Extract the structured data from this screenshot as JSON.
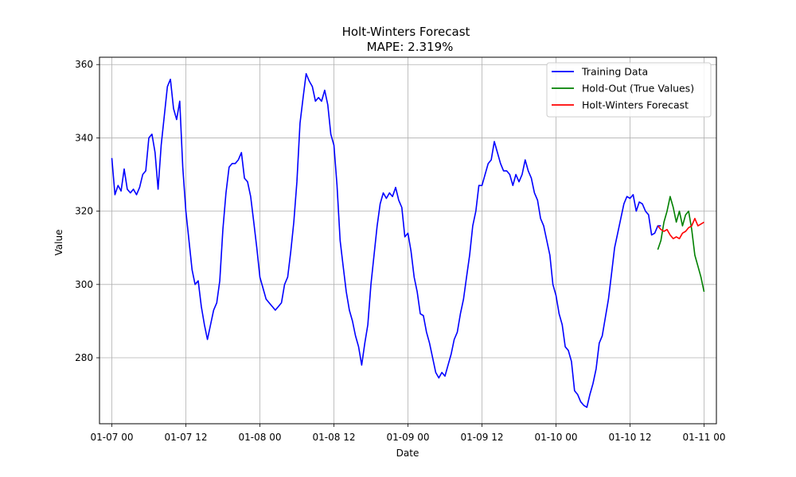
{
  "chart_data": {
    "type": "line",
    "title": "Holt-Winters Forecast",
    "subtitle": "MAPE: 2.319%",
    "xlabel": "Date",
    "ylabel": "Value",
    "xlim": [
      -2,
      98
    ],
    "ylim": [
      262,
      362
    ],
    "grid": true,
    "legend_position": "top-right",
    "xtick_values": [
      0,
      12,
      24,
      36,
      48,
      60,
      72,
      84,
      96
    ],
    "xtick_labels": [
      "01-07 00",
      "01-07 12",
      "01-08 00",
      "01-08 12",
      "01-09 00",
      "01-09 12",
      "01-10 00",
      "01-10 12",
      "01-11 00"
    ],
    "ytick_values": [
      280,
      300,
      320,
      340,
      360
    ],
    "ytick_labels": [
      "280",
      "300",
      "320",
      "340",
      "360"
    ],
    "series": [
      {
        "name": "Training Data",
        "color": "#0000ff",
        "points": [
          [
            0,
            334.5
          ],
          [
            0.5,
            324.5
          ],
          [
            1,
            327
          ],
          [
            1.5,
            325.5
          ],
          [
            2,
            331.5
          ],
          [
            2.5,
            326
          ],
          [
            3,
            325
          ],
          [
            3.5,
            326
          ],
          [
            4,
            324.5
          ],
          [
            4.5,
            326.5
          ],
          [
            5,
            330
          ],
          [
            5.5,
            331
          ],
          [
            6,
            340
          ],
          [
            6.5,
            341
          ],
          [
            7,
            336
          ],
          [
            7.5,
            326
          ],
          [
            8,
            338
          ],
          [
            8.5,
            346
          ],
          [
            9,
            354
          ],
          [
            9.5,
            356
          ],
          [
            10,
            348
          ],
          [
            10.5,
            345
          ],
          [
            11,
            350
          ],
          [
            11.5,
            332
          ],
          [
            12,
            320
          ],
          [
            12.5,
            312
          ],
          [
            13,
            304
          ],
          [
            13.5,
            300
          ],
          [
            14,
            301
          ],
          [
            14.5,
            294
          ],
          [
            15,
            289
          ],
          [
            15.5,
            285
          ],
          [
            16,
            289
          ],
          [
            16.5,
            293
          ],
          [
            17,
            295
          ],
          [
            17.5,
            301
          ],
          [
            18,
            315
          ],
          [
            18.5,
            325
          ],
          [
            19,
            332
          ],
          [
            19.5,
            333
          ],
          [
            20,
            333
          ],
          [
            20.5,
            334
          ],
          [
            21,
            336
          ],
          [
            21.5,
            329
          ],
          [
            22,
            328
          ],
          [
            22.5,
            324
          ],
          [
            23,
            317
          ],
          [
            23.5,
            310
          ],
          [
            24,
            302
          ],
          [
            24.5,
            299
          ],
          [
            25,
            296
          ],
          [
            25.5,
            295
          ],
          [
            26,
            294
          ],
          [
            26.5,
            293
          ],
          [
            27,
            294
          ],
          [
            27.5,
            295
          ],
          [
            28,
            300
          ],
          [
            28.5,
            302
          ],
          [
            29,
            309
          ],
          [
            29.5,
            317
          ],
          [
            30,
            328
          ],
          [
            30.5,
            344
          ],
          [
            31,
            351
          ],
          [
            31.5,
            357.5
          ],
          [
            32,
            355.5
          ],
          [
            32.5,
            354
          ],
          [
            33,
            350
          ],
          [
            33.5,
            351
          ],
          [
            34,
            350
          ],
          [
            34.5,
            353
          ],
          [
            35,
            349
          ],
          [
            35.5,
            341
          ],
          [
            36,
            338
          ],
          [
            36.5,
            327
          ],
          [
            37,
            312
          ],
          [
            37.5,
            305
          ],
          [
            38,
            298
          ],
          [
            38.5,
            293
          ],
          [
            39,
            290
          ],
          [
            39.5,
            286
          ],
          [
            40,
            283
          ],
          [
            40.5,
            278
          ],
          [
            41,
            284
          ],
          [
            41.5,
            289
          ],
          [
            42,
            300
          ],
          [
            42.5,
            308
          ],
          [
            43,
            316
          ],
          [
            43.5,
            322
          ],
          [
            44,
            325
          ],
          [
            44.5,
            323.5
          ],
          [
            45,
            325
          ],
          [
            45.5,
            324
          ],
          [
            46,
            326.5
          ],
          [
            46.5,
            323
          ],
          [
            47,
            321
          ],
          [
            47.5,
            313
          ],
          [
            48,
            314
          ],
          [
            48.5,
            309
          ],
          [
            49,
            302
          ],
          [
            49.5,
            298
          ],
          [
            50,
            292
          ],
          [
            50.5,
            291.5
          ],
          [
            51,
            287
          ],
          [
            51.5,
            284
          ],
          [
            52,
            280
          ],
          [
            52.5,
            276
          ],
          [
            53,
            274.5
          ],
          [
            53.5,
            276
          ],
          [
            54,
            275
          ],
          [
            54.5,
            278
          ],
          [
            55,
            281
          ],
          [
            55.5,
            285
          ],
          [
            56,
            287
          ],
          [
            56.5,
            292
          ],
          [
            57,
            296
          ],
          [
            57.5,
            302
          ],
          [
            58,
            308
          ],
          [
            58.5,
            316
          ],
          [
            59,
            320
          ],
          [
            59.5,
            327
          ],
          [
            60,
            327
          ],
          [
            60.5,
            330
          ],
          [
            61,
            333
          ],
          [
            61.5,
            334
          ],
          [
            62,
            339
          ],
          [
            62.5,
            336
          ],
          [
            63,
            333
          ],
          [
            63.5,
            331
          ],
          [
            64,
            331
          ],
          [
            64.5,
            330
          ],
          [
            65,
            327
          ],
          [
            65.5,
            330
          ],
          [
            66,
            328
          ],
          [
            66.5,
            330
          ],
          [
            67,
            334
          ],
          [
            67.5,
            331
          ],
          [
            68,
            329
          ],
          [
            68.5,
            325
          ],
          [
            69,
            323
          ],
          [
            69.5,
            318
          ],
          [
            70,
            316
          ],
          [
            70.5,
            312
          ],
          [
            71,
            308
          ],
          [
            71.5,
            300
          ],
          [
            72,
            297
          ],
          [
            72.5,
            292
          ],
          [
            73,
            289
          ],
          [
            73.5,
            283
          ],
          [
            74,
            282
          ],
          [
            74.5,
            279
          ],
          [
            75,
            271
          ],
          [
            75.5,
            270
          ],
          [
            76,
            268
          ],
          [
            76.5,
            267
          ],
          [
            77,
            266.5
          ],
          [
            77.5,
            270
          ],
          [
            78,
            273
          ],
          [
            78.5,
            277
          ],
          [
            79,
            284
          ],
          [
            79.5,
            286
          ],
          [
            80,
            291
          ],
          [
            80.5,
            296
          ],
          [
            81,
            303
          ],
          [
            81.5,
            310
          ],
          [
            82,
            314
          ],
          [
            82.5,
            318
          ],
          [
            83,
            322
          ],
          [
            83.5,
            324
          ],
          [
            84,
            323.5
          ],
          [
            84.5,
            324.5
          ],
          [
            85,
            320
          ],
          [
            85.5,
            322.5
          ],
          [
            86,
            322
          ],
          [
            86.5,
            320
          ],
          [
            87,
            319
          ],
          [
            87.5,
            313.5
          ],
          [
            88,
            314
          ],
          [
            88.5,
            316
          ],
          [
            89,
            316
          ]
        ]
      },
      {
        "name": "Hold-Out (True Values)",
        "color": "#008000",
        "points": [
          [
            88.5,
            309.5
          ],
          [
            89,
            312
          ],
          [
            89.5,
            317
          ],
          [
            90,
            320
          ],
          [
            90.5,
            324
          ],
          [
            91,
            321
          ],
          [
            91.5,
            317
          ],
          [
            92,
            320
          ],
          [
            92.5,
            316
          ],
          [
            93,
            319
          ],
          [
            93.5,
            320
          ],
          [
            94,
            315
          ],
          [
            94.5,
            308
          ],
          [
            95,
            305
          ],
          [
            95.5,
            302
          ],
          [
            96,
            298
          ]
        ]
      },
      {
        "name": "Holt-Winters Forecast",
        "color": "#ff0000",
        "points": [
          [
            88.5,
            316
          ],
          [
            89,
            315
          ],
          [
            89.5,
            314.5
          ],
          [
            90,
            315
          ],
          [
            90.5,
            313.5
          ],
          [
            91,
            312.5
          ],
          [
            91.5,
            313
          ],
          [
            92,
            312.5
          ],
          [
            92.5,
            314
          ],
          [
            93,
            314.5
          ],
          [
            93.5,
            315.5
          ],
          [
            94,
            316
          ],
          [
            94.5,
            318
          ],
          [
            95,
            316
          ],
          [
            95.5,
            316.5
          ],
          [
            96,
            317
          ]
        ]
      }
    ]
  }
}
